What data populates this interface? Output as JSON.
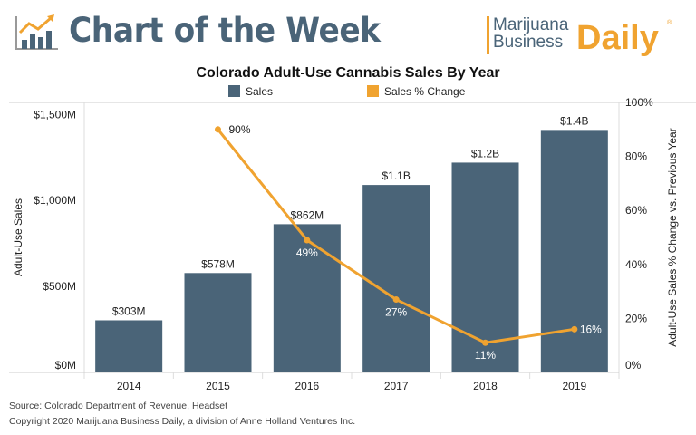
{
  "header": {
    "title": "Chart of the Week",
    "brand_line1": "Marijuana",
    "brand_line2": "Business",
    "brand_daily": "Daily",
    "brand_reg": "®"
  },
  "colors": {
    "sales": "#4a6478",
    "change": "#f0a330"
  },
  "chart_data": {
    "type": "bar+line",
    "title": "Colorado Adult-Use Cannabis Sales By Year",
    "categories": [
      "2014",
      "2015",
      "2016",
      "2017",
      "2018",
      "2019"
    ],
    "series": [
      {
        "name": "Sales",
        "type": "bar",
        "axis": "left",
        "values": [
          303,
          578,
          862,
          1090,
          1220,
          1410
        ],
        "labels": [
          "$303M",
          "$578M",
          "$862M",
          "$1.1B",
          "$1.2B",
          "$1.4B"
        ]
      },
      {
        "name": "Sales % Change",
        "type": "line",
        "axis": "right",
        "values": [
          null,
          90,
          49,
          27,
          11,
          16
        ],
        "labels": [
          "",
          "90%",
          "49%",
          "27%",
          "11%",
          "16%"
        ]
      }
    ],
    "ylabel": "Adult-Use Sales",
    "y2label": "Adult-Use Sales % Change vs. Previous Year",
    "ylim": [
      0,
      1570
    ],
    "y2lim": [
      0,
      100
    ],
    "yticks": [
      0,
      500,
      1000,
      1500
    ],
    "ytick_labels": [
      "$0M",
      "$500M",
      "$1,000M",
      "$1,500M"
    ],
    "y2ticks": [
      0,
      20,
      40,
      60,
      80,
      100
    ],
    "y2tick_labels": [
      "0%",
      "20%",
      "40%",
      "60%",
      "80%",
      "100%"
    ],
    "legend": "top",
    "grid": false
  },
  "footer": {
    "source": "Source: Colorado Department of Revenue, Headset",
    "copyright": "Copyright 2020 Marijuana Business Daily, a division of Anne Holland Ventures Inc."
  }
}
